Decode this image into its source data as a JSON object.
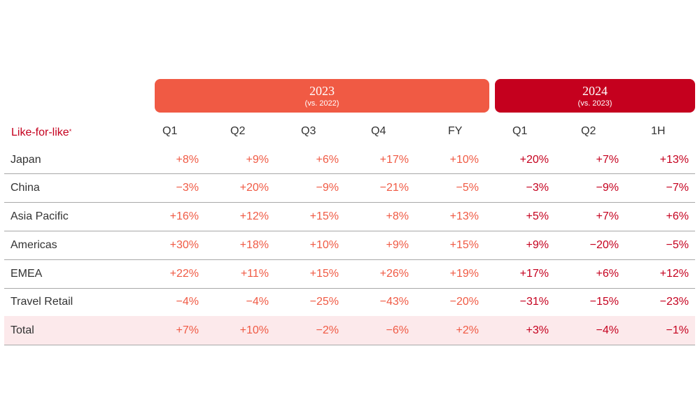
{
  "table": {
    "title": "Like-for-like",
    "title_marker": "*",
    "bands": [
      {
        "year": "2023",
        "note": "(vs. 2022)",
        "color": "#f05a44"
      },
      {
        "year": "2024",
        "note": "(vs. 2023)",
        "color": "#c5001e"
      }
    ],
    "columns": [
      "Q1",
      "Q2",
      "Q3",
      "Q4",
      "FY",
      "Q1",
      "Q2",
      "1H"
    ],
    "rows": [
      {
        "label": "Japan",
        "values": [
          "+8%",
          "+9%",
          "+6%",
          "+17%",
          "+10%",
          "+20%",
          "+7%",
          "+13%"
        ]
      },
      {
        "label": "China",
        "values": [
          "−3%",
          "+20%",
          "−9%",
          "−21%",
          "−5%",
          "−3%",
          "−9%",
          "−7%"
        ]
      },
      {
        "label": "Asia Pacific",
        "values": [
          "+16%",
          "+12%",
          "+15%",
          "+8%",
          "+13%",
          "+5%",
          "+7%",
          "+6%"
        ]
      },
      {
        "label": "Americas",
        "values": [
          "+30%",
          "+18%",
          "+10%",
          "+9%",
          "+15%",
          "+9%",
          "−20%",
          "−5%"
        ]
      },
      {
        "label": "EMEA",
        "values": [
          "+22%",
          "+11%",
          "+15%",
          "+26%",
          "+19%",
          "+17%",
          "+6%",
          "+12%"
        ]
      },
      {
        "label": "Travel Retail",
        "values": [
          "−4%",
          "−4%",
          "−25%",
          "−43%",
          "−20%",
          "−31%",
          "−15%",
          "−23%"
        ]
      },
      {
        "label": "Total",
        "values": [
          "+7%",
          "+10%",
          "−2%",
          "−6%",
          "+2%",
          "+3%",
          "−4%",
          "−1%"
        ]
      }
    ]
  }
}
